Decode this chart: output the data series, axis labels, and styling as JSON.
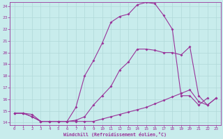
{
  "xlabel": "Windchill (Refroidissement éolien,°C)",
  "bg_color": "#c8ecec",
  "line_color": "#993399",
  "grid_color": "#b0d8d8",
  "xlim": [
    -0.5,
    23.5
  ],
  "ylim": [
    13.8,
    24.3
  ],
  "xticks": [
    0,
    1,
    2,
    3,
    4,
    5,
    6,
    7,
    8,
    9,
    10,
    11,
    12,
    13,
    14,
    15,
    16,
    17,
    18,
    19,
    20,
    21,
    22,
    23
  ],
  "yticks": [
    14,
    15,
    16,
    17,
    18,
    19,
    20,
    21,
    22,
    23,
    24
  ],
  "line1_x": [
    0,
    1,
    2,
    3,
    4,
    5,
    6,
    7,
    8,
    9,
    10,
    11,
    12,
    13,
    14,
    15,
    16,
    17,
    18,
    19,
    20,
    21,
    22,
    23
  ],
  "line1_y": [
    14.8,
    14.8,
    14.7,
    14.1,
    14.1,
    14.1,
    14.1,
    14.1,
    14.1,
    14.1,
    14.3,
    14.5,
    14.7,
    14.9,
    15.1,
    15.3,
    15.6,
    15.9,
    16.2,
    16.5,
    16.8,
    15.8,
    15.5,
    16.1
  ],
  "line2_x": [
    0,
    1,
    2,
    3,
    4,
    5,
    6,
    7,
    8,
    9,
    10,
    11,
    12,
    13,
    14,
    15,
    16,
    17,
    18,
    19,
    20,
    21,
    22,
    23
  ],
  "line2_y": [
    14.8,
    14.8,
    14.5,
    14.1,
    14.1,
    14.1,
    14.1,
    15.3,
    18.0,
    19.3,
    20.8,
    22.6,
    23.1,
    23.3,
    24.1,
    24.3,
    24.2,
    23.2,
    22.0,
    16.3,
    16.3,
    15.5,
    16.1,
    null
  ],
  "line3_x": [
    0,
    1,
    2,
    3,
    4,
    5,
    6,
    7,
    8,
    9,
    10,
    11,
    12,
    13,
    14,
    15,
    16,
    17,
    18,
    19,
    20,
    21,
    22,
    23
  ],
  "line3_y": [
    14.8,
    14.8,
    14.5,
    14.1,
    14.1,
    14.1,
    14.1,
    14.2,
    14.5,
    15.5,
    16.3,
    17.1,
    18.5,
    19.2,
    20.3,
    20.3,
    20.2,
    20.0,
    20.0,
    19.8,
    20.5,
    16.3,
    15.5,
    16.1
  ]
}
